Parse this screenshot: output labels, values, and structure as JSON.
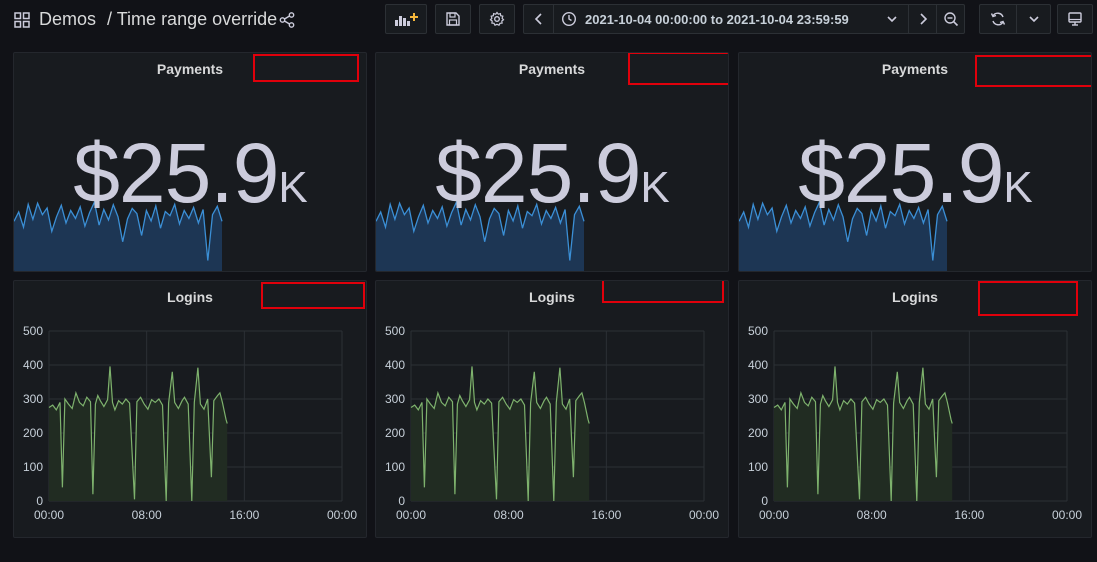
{
  "breadcrumb": {
    "folder": "Demos",
    "separator": "/",
    "title": "Time range override"
  },
  "time_picker": {
    "range": "2021-10-04 00:00:00 to 2021-10-04 23:59:59"
  },
  "icons": {
    "dashboard": "apps-icon",
    "share": "share-icon",
    "add_panel": "add-panel-icon",
    "save": "save-icon",
    "settings": "gear-icon",
    "prev": "chevron-left-icon",
    "clock": "clock-icon",
    "time_dropdown": "chevron-down-icon",
    "next": "chevron-right-icon",
    "zoom_out": "zoom-out-icon",
    "refresh": "refresh-icon",
    "refresh_dropdown": "chevron-down-icon",
    "tv_mode": "monitor-icon"
  },
  "colors": {
    "background": "#111217",
    "panel": "#181b1f",
    "stat_line": "#3b8fd6",
    "stat_fill": "#1e3a5a",
    "login_line": "#7eb26d",
    "login_fill": "#212c22",
    "annotation_box": "#e0000b",
    "add_panel_accent": "#f5b73b"
  },
  "panels": [
    {
      "title": "Payments",
      "type": "stat",
      "value": "$25.9",
      "unit": "K"
    },
    {
      "title": "Payments",
      "type": "stat",
      "value": "$25.9",
      "unit": "K"
    },
    {
      "title": "Payments",
      "type": "stat",
      "value": "$25.9",
      "unit": "K"
    },
    {
      "title": "Logins",
      "type": "timeseries"
    },
    {
      "title": "Logins",
      "type": "timeseries"
    },
    {
      "title": "Logins",
      "type": "timeseries"
    }
  ],
  "chart_data": [
    {
      "type": "area",
      "series": [
        {
          "values": [
            248,
            293,
            220,
            330,
            258,
            335,
            280,
            312,
            200,
            270,
            325,
            240,
            300,
            262,
            318,
            225,
            290,
            340,
            230,
            305,
            255,
            328,
            270,
            150,
            260,
            310,
            285,
            180,
            300,
            250,
            322,
            215,
            295,
            275,
            330,
            235,
            300,
            262,
            315,
            240,
            305,
            60,
            280,
            320,
            248
          ]
        }
      ]
    },
    {
      "type": "line",
      "x_ticks": [
        "00:00",
        "08:00",
        "16:00",
        "00:00"
      ],
      "ylim": [
        0,
        500
      ],
      "y_ticks": [
        0,
        100,
        200,
        300,
        400,
        500
      ],
      "grid": true,
      "series": [
        {
          "values": [
            [
              0.0,
              275
            ],
            [
              0.3,
              282
            ],
            [
              0.6,
              268
            ],
            [
              0.9,
              290
            ],
            [
              1.1,
              40
            ],
            [
              1.3,
              300
            ],
            [
              1.6,
              285
            ],
            [
              1.9,
              272
            ],
            [
              2.2,
              318
            ],
            [
              2.5,
              290
            ],
            [
              2.8,
              280
            ],
            [
              3.1,
              305
            ],
            [
              3.4,
              292
            ],
            [
              3.6,
              20
            ],
            [
              3.8,
              285
            ],
            [
              4.0,
              310
            ],
            [
              4.2,
              295
            ],
            [
              4.5,
              278
            ],
            [
              4.8,
              298
            ],
            [
              5.0,
              396
            ],
            [
              5.2,
              290
            ],
            [
              5.4,
              268
            ],
            [
              5.7,
              295
            ],
            [
              6.0,
              285
            ],
            [
              6.3,
              300
            ],
            [
              6.6,
              288
            ],
            [
              7.0,
              5
            ],
            [
              7.2,
              292
            ],
            [
              7.5,
              305
            ],
            [
              7.8,
              285
            ],
            [
              8.1,
              270
            ],
            [
              8.4,
              298
            ],
            [
              8.7,
              290
            ],
            [
              9.0,
              300
            ],
            [
              9.3,
              282
            ],
            [
              9.6,
              0
            ],
            [
              9.8,
              288
            ],
            [
              10.1,
              380
            ],
            [
              10.3,
              290
            ],
            [
              10.6,
              272
            ],
            [
              10.9,
              295
            ],
            [
              11.1,
              305
            ],
            [
              11.4,
              285
            ],
            [
              11.7,
              0
            ],
            [
              11.9,
              290
            ],
            [
              12.2,
              392
            ],
            [
              12.4,
              285
            ],
            [
              12.7,
              270
            ],
            [
              13.0,
              300
            ],
            [
              13.3,
              70
            ],
            [
              13.5,
              295
            ],
            [
              13.8,
              310
            ],
            [
              14.0,
              318
            ],
            [
              14.2,
              290
            ],
            [
              14.5,
              240
            ],
            [
              14.6,
              228
            ]
          ]
        }
      ]
    }
  ]
}
